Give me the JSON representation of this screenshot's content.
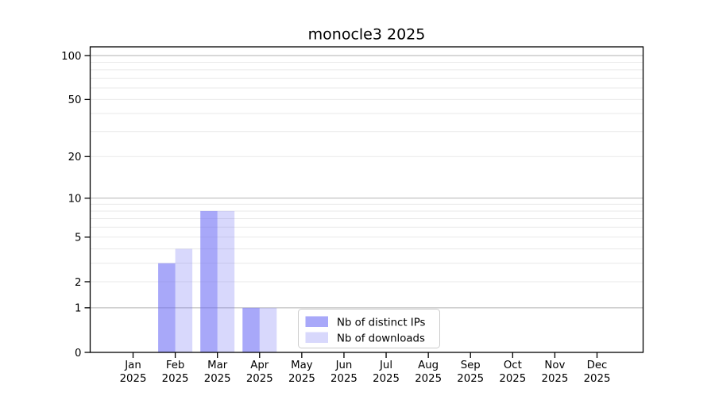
{
  "chart_data": {
    "type": "bar",
    "title": "monocle3 2025",
    "year_label": "2025",
    "categories": [
      "Jan",
      "Feb",
      "Mar",
      "Apr",
      "May",
      "Jun",
      "Jul",
      "Aug",
      "Sep",
      "Oct",
      "Nov",
      "Dec"
    ],
    "series": [
      {
        "name": "Nb of distinct IPs",
        "base_color": "#6666f5",
        "alpha": 0.57,
        "values": [
          0,
          3,
          8,
          1,
          0,
          0,
          0,
          0,
          0,
          0,
          0,
          0
        ]
      },
      {
        "name": "Nb of downloads",
        "base_color": "#6666f5",
        "alpha": 0.255,
        "values": [
          0,
          4,
          8,
          1,
          0,
          0,
          0,
          0,
          0,
          0,
          0,
          0
        ]
      }
    ],
    "xlabel": "",
    "ylabel": "",
    "y_scale": "log1p",
    "ylim": [
      0,
      115
    ],
    "yticks": [
      0,
      1,
      2,
      5,
      10,
      20,
      50,
      100
    ],
    "grid": {
      "major_values": [
        1,
        10,
        100
      ],
      "minor_values": [
        2,
        3,
        4,
        5,
        6,
        7,
        8,
        9,
        20,
        30,
        40,
        50,
        60,
        70,
        80,
        90
      ],
      "major_color": "#b2b2b2",
      "minor_color": "#e9e9e9"
    },
    "legend": {
      "position": "lower-center",
      "border_color": "#cccccc",
      "background": "#ffffff"
    },
    "spine_color": "#000000",
    "plot_background": "#ffffff"
  }
}
